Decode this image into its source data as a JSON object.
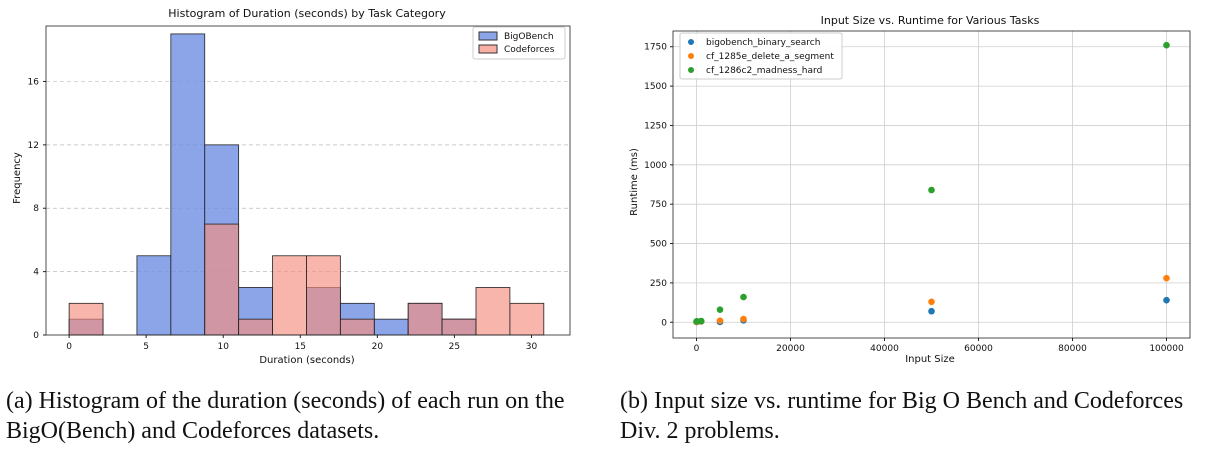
{
  "chart_data": [
    {
      "type": "histogram",
      "title": "Histogram of Duration (seconds) by Task Category",
      "xlabel": "Duration (seconds)",
      "ylabel": "Frequency",
      "xlim": [
        -1.5,
        32.5
      ],
      "ylim": [
        0,
        19.5
      ],
      "xticks": [
        0,
        5,
        10,
        15,
        20,
        25,
        30
      ],
      "yticks": [
        0,
        4,
        8,
        12,
        16
      ],
      "grid": "y-dashed",
      "legend_position": "top-right",
      "series": [
        {
          "name": "BigOBench",
          "color": "#6f8fe3",
          "bins": [
            {
              "x0": 0,
              "x1": 2.2,
              "value": 1
            },
            {
              "x0": 4.4,
              "x1": 6.6,
              "value": 5
            },
            {
              "x0": 6.6,
              "x1": 8.8,
              "value": 19
            },
            {
              "x0": 8.8,
              "x1": 11.0,
              "value": 12
            },
            {
              "x0": 11.0,
              "x1": 13.2,
              "value": 3
            },
            {
              "x0": 15.4,
              "x1": 17.6,
              "value": 3
            },
            {
              "x0": 17.6,
              "x1": 19.8,
              "value": 2
            },
            {
              "x0": 19.8,
              "x1": 22.0,
              "value": 1
            },
            {
              "x0": 22.0,
              "x1": 24.2,
              "value": 2
            },
            {
              "x0": 24.2,
              "x1": 26.4,
              "value": 1
            }
          ]
        },
        {
          "name": "Codeforces",
          "color": "#f58e80",
          "bins": [
            {
              "x0": 0,
              "x1": 2.2,
              "value": 2
            },
            {
              "x0": 8.8,
              "x1": 11.0,
              "value": 7
            },
            {
              "x0": 11.0,
              "x1": 13.2,
              "value": 1
            },
            {
              "x0": 13.2,
              "x1": 15.4,
              "value": 5
            },
            {
              "x0": 15.4,
              "x1": 17.6,
              "value": 5
            },
            {
              "x0": 17.6,
              "x1": 19.8,
              "value": 1
            },
            {
              "x0": 22.0,
              "x1": 24.2,
              "value": 2
            },
            {
              "x0": 24.2,
              "x1": 26.4,
              "value": 1
            },
            {
              "x0": 26.4,
              "x1": 28.6,
              "value": 3
            },
            {
              "x0": 28.6,
              "x1": 30.8,
              "value": 2
            }
          ]
        }
      ]
    },
    {
      "type": "scatter",
      "title": "Input Size vs. Runtime for Various Tasks",
      "xlabel": "Input Size",
      "ylabel": "Runtime (ms)",
      "xlim": [
        -5000,
        105000
      ],
      "ylim": [
        -100,
        1850
      ],
      "xticks": [
        0,
        20000,
        40000,
        60000,
        80000,
        100000
      ],
      "yticks": [
        0,
        250,
        500,
        750,
        1000,
        1250,
        1500,
        1750
      ],
      "grid": "both",
      "legend_position": "top-left",
      "series": [
        {
          "name": "bigobench_binary_search",
          "color": "#1f77b4",
          "points": [
            [
              10,
              2
            ],
            [
              100,
              3
            ],
            [
              1000,
              5
            ],
            [
              5000,
              2
            ],
            [
              10000,
              12
            ],
            [
              50000,
              70
            ],
            [
              100000,
              140
            ]
          ]
        },
        {
          "name": "cf_1285e_delete_a_segment",
          "color": "#ff7f0e",
          "points": [
            [
              10,
              3
            ],
            [
              100,
              4
            ],
            [
              1000,
              6
            ],
            [
              5000,
              10
            ],
            [
              10000,
              20
            ],
            [
              50000,
              130
            ],
            [
              100000,
              280
            ]
          ]
        },
        {
          "name": "cf_1286c2_madness_hard",
          "color": "#2ca02c",
          "points": [
            [
              10,
              5
            ],
            [
              100,
              6
            ],
            [
              1000,
              8
            ],
            [
              5000,
              80
            ],
            [
              10000,
              160
            ],
            [
              50000,
              840
            ],
            [
              100000,
              1760
            ]
          ]
        }
      ]
    }
  ],
  "captions": {
    "a": "(a) Histogram of the duration (seconds) of each run on the BigO(Bench) and Codeforces datasets.",
    "b": "(b) Input size vs. runtime for Big O Bench and Codeforces Div. 2 problems."
  }
}
